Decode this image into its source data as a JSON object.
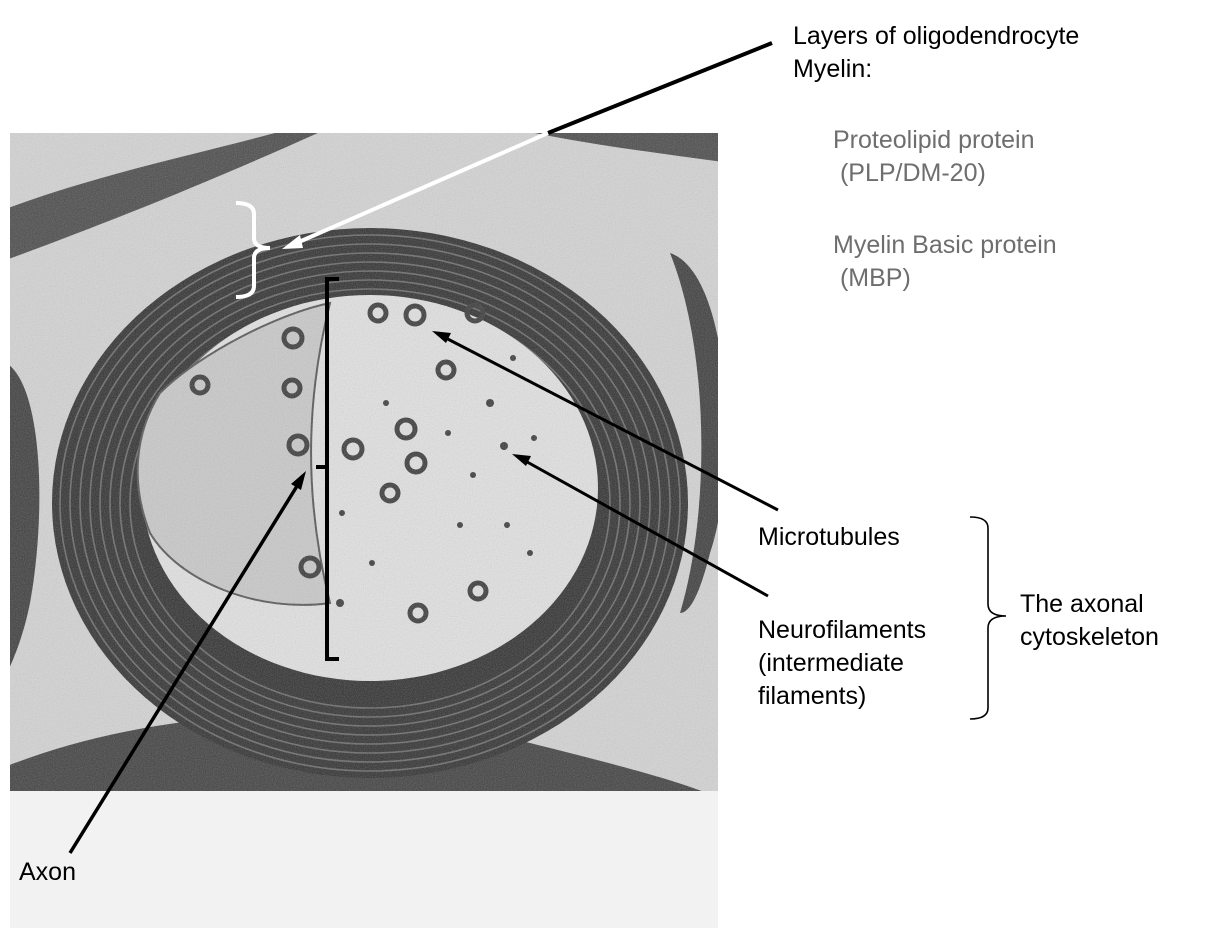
{
  "labels": {
    "myelin_title": "Layers of oligodendrocyte\nMyelin:",
    "plp": "Proteolipid protein\n (PLP/DM-20)",
    "mbp": "Myelin Basic protein\n (MBP)",
    "microtubules": "Microtubules",
    "neurofilaments": "Neurofilaments\n(intermediate\nfilaments)",
    "cytoskeleton": "The axonal\ncytoskeleton",
    "axon": "Axon"
  },
  "colors": {
    "label_text": "#000000",
    "protein_text": "#6e6e6e",
    "em_background": "#d8d8d8",
    "myelin_dark": "#2f2f2f",
    "axoplasm": "#e3e3e3",
    "lower_band": "#f2f2f2",
    "arrow_black": "#000000",
    "arrow_white": "#ffffff"
  },
  "image": {
    "content": "electron micrograph of a myelinated axon in cross-section"
  }
}
